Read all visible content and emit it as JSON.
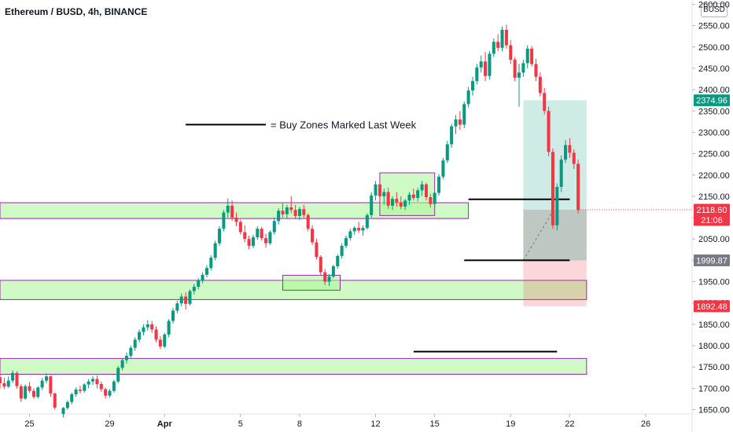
{
  "chart_data": {
    "type": "candlestick",
    "title": "Ethereum / BUSD, 4h, BINANCE",
    "currency": "BUSD",
    "y_axis": {
      "range": [
        1640,
        2610
      ],
      "ticks": [
        "1650.00",
        "1700.00",
        "1750.00",
        "1800.00",
        "1850.00",
        "1900.00",
        "1950.00",
        "2000.00",
        "2050.00",
        "2100.00",
        "2150.00",
        "2200.00",
        "2250.00",
        "2300.00",
        "2350.00",
        "2400.00",
        "2450.00",
        "2500.00",
        "2550.00",
        "2600.00"
      ],
      "tick_values": [
        1650,
        1700,
        1750,
        1800,
        1850,
        1900,
        1950,
        2000,
        2050,
        2100,
        2150,
        2200,
        2250,
        2300,
        2350,
        2400,
        2450,
        2500,
        2550,
        2600
      ]
    },
    "x_axis": {
      "range": [
        -3.5,
        78.5
      ],
      "ticks": [
        "25",
        "29",
        "Apr",
        "5",
        "8",
        "12",
        "15",
        "19",
        "22",
        "26"
      ],
      "tick_positions": [
        0,
        9.5,
        16,
        25,
        32,
        41,
        48,
        57,
        64,
        73
      ]
    },
    "price_tags": [
      {
        "label": "2374.96",
        "value": 2374.96,
        "color": "#089981"
      },
      {
        "label": "2118.60",
        "sub": "21:06",
        "value": 2118.6,
        "color": "#f23645"
      },
      {
        "label": "1999.87",
        "value": 1999.87,
        "color": "#787b86"
      },
      {
        "label": "1892.48",
        "value": 1892.48,
        "color": "#f23645"
      }
    ],
    "annotation": "= Buy Zones Marked Last Week",
    "zones": [
      {
        "name": "buy-zone-1",
        "x1": -3.5,
        "x2": 52,
        "y1": 2098,
        "y2": 2135
      },
      {
        "name": "buy-zone-2",
        "x1": -3.5,
        "x2": 66,
        "y1": 1908,
        "y2": 1953
      },
      {
        "name": "buy-zone-3",
        "x1": -3.5,
        "x2": 66,
        "y1": 1733,
        "y2": 1770
      },
      {
        "name": "consolidation-box-1",
        "x1": 30,
        "x2": 36.8,
        "y1": 1930,
        "y2": 1965
      },
      {
        "name": "consolidation-box-2",
        "x1": 41.5,
        "x2": 48,
        "y1": 2105,
        "y2": 2205
      }
    ],
    "trade_setup": {
      "x1": 58.5,
      "x2": 66,
      "target": 2374.96,
      "entry": 2118.6,
      "stop": 1892.48,
      "mid_level": 1999.87
    },
    "levels": [
      {
        "x1": 52,
        "x2": 64,
        "y": 2143
      },
      {
        "x1": 51.5,
        "x2": 64,
        "y": 2000
      },
      {
        "x1": 45.5,
        "x2": 62.5,
        "y": 1786
      }
    ],
    "legend_line": {
      "x1": 18.5,
      "x2": 28,
      "y": 2318
    },
    "candles": [
      [
        -3.5,
        1726,
        1736,
        1700,
        1712
      ],
      [
        -3,
        1712,
        1725,
        1698,
        1704
      ],
      [
        -2.5,
        1704,
        1728,
        1701,
        1718
      ],
      [
        -2,
        1718,
        1742,
        1712,
        1736
      ],
      [
        -1.5,
        1736,
        1740,
        1699,
        1705
      ],
      [
        -1,
        1705,
        1710,
        1668,
        1676
      ],
      [
        -0.5,
        1676,
        1709,
        1673,
        1705
      ],
      [
        0,
        1705,
        1715,
        1690,
        1694
      ],
      [
        0.5,
        1694,
        1700,
        1675,
        1680
      ],
      [
        1,
        1680,
        1705,
        1676,
        1702
      ],
      [
        1.5,
        1702,
        1725,
        1696,
        1718
      ],
      [
        2,
        1718,
        1735,
        1712,
        1728
      ],
      [
        2.5,
        1728,
        1730,
        1680,
        1688
      ],
      [
        3,
        1688,
        1690,
        1650,
        1655
      ],
      [
        4,
        1640,
        1656,
        1632,
        1654
      ],
      [
        4.5,
        1654,
        1672,
        1650,
        1668
      ],
      [
        5,
        1668,
        1690,
        1662,
        1686
      ],
      [
        5.5,
        1686,
        1702,
        1680,
        1697
      ],
      [
        6,
        1697,
        1706,
        1688,
        1694
      ],
      [
        6.5,
        1694,
        1712,
        1690,
        1709
      ],
      [
        7,
        1709,
        1722,
        1700,
        1716
      ],
      [
        7.5,
        1716,
        1728,
        1708,
        1722
      ],
      [
        8,
        1722,
        1730,
        1700,
        1710
      ],
      [
        8.5,
        1710,
        1716,
        1692,
        1698
      ],
      [
        9,
        1698,
        1702,
        1676,
        1683
      ],
      [
        9.5,
        1683,
        1698,
        1678,
        1694
      ],
      [
        10,
        1694,
        1720,
        1690,
        1716
      ],
      [
        10.5,
        1716,
        1752,
        1712,
        1748
      ],
      [
        11,
        1748,
        1770,
        1742,
        1766
      ],
      [
        11.5,
        1766,
        1784,
        1758,
        1776
      ],
      [
        12,
        1776,
        1800,
        1770,
        1795
      ],
      [
        12.5,
        1795,
        1820,
        1788,
        1814
      ],
      [
        13,
        1814,
        1838,
        1808,
        1832
      ],
      [
        13.5,
        1832,
        1850,
        1824,
        1843
      ],
      [
        14,
        1843,
        1860,
        1835,
        1850
      ],
      [
        14.5,
        1850,
        1858,
        1830,
        1838
      ],
      [
        15,
        1838,
        1845,
        1808,
        1814
      ],
      [
        15.5,
        1814,
        1822,
        1792,
        1798
      ],
      [
        16,
        1798,
        1830,
        1794,
        1826
      ],
      [
        16.5,
        1826,
        1862,
        1820,
        1858
      ],
      [
        17,
        1858,
        1888,
        1852,
        1882
      ],
      [
        17.5,
        1882,
        1905,
        1876,
        1899
      ],
      [
        18,
        1899,
        1922,
        1892,
        1915
      ],
      [
        18.5,
        1915,
        1925,
        1885,
        1898
      ],
      [
        19,
        1898,
        1932,
        1894,
        1928
      ],
      [
        19.5,
        1928,
        1945,
        1920,
        1938
      ],
      [
        20,
        1938,
        1958,
        1932,
        1952
      ],
      [
        20.5,
        1952,
        1972,
        1946,
        1966
      ],
      [
        21,
        1966,
        1988,
        1960,
        1982
      ],
      [
        21.5,
        1982,
        2012,
        1976,
        2006
      ],
      [
        22,
        2006,
        2046,
        2000,
        2040
      ],
      [
        22.5,
        2040,
        2080,
        2034,
        2074
      ],
      [
        23,
        2074,
        2118,
        2068,
        2112
      ],
      [
        23.5,
        2112,
        2145,
        2100,
        2128
      ],
      [
        24,
        2128,
        2140,
        2092,
        2100
      ],
      [
        24.5,
        2100,
        2112,
        2080,
        2090
      ],
      [
        25,
        2090,
        2096,
        2060,
        2066
      ],
      [
        25.5,
        2066,
        2082,
        2042,
        2050
      ],
      [
        26,
        2050,
        2058,
        2026,
        2034
      ],
      [
        26.5,
        2034,
        2060,
        2028,
        2054
      ],
      [
        27,
        2054,
        2080,
        2048,
        2074
      ],
      [
        27.5,
        2074,
        2078,
        2046,
        2052
      ],
      [
        28,
        2052,
        2062,
        2030,
        2040
      ],
      [
        28.5,
        2040,
        2070,
        2036,
        2066
      ],
      [
        29,
        2066,
        2100,
        2060,
        2092
      ],
      [
        29.5,
        2092,
        2122,
        2084,
        2116
      ],
      [
        30,
        2116,
        2135,
        2100,
        2108
      ],
      [
        30.5,
        2108,
        2130,
        2098,
        2124
      ],
      [
        31,
        2124,
        2150,
        2110,
        2118
      ],
      [
        31.5,
        2118,
        2130,
        2096,
        2104
      ],
      [
        32,
        2104,
        2125,
        2094,
        2120
      ],
      [
        32.5,
        2120,
        2130,
        2100,
        2106
      ],
      [
        33,
        2106,
        2110,
        2068,
        2074
      ],
      [
        33.5,
        2074,
        2082,
        2036,
        2042
      ],
      [
        34,
        2042,
        2050,
        2002,
        2008
      ],
      [
        34.5,
        2008,
        2012,
        1966,
        1972
      ],
      [
        35,
        1972,
        1980,
        1942,
        1950
      ],
      [
        35.5,
        1950,
        1968,
        1940,
        1962
      ],
      [
        36,
        1962,
        1990,
        1958,
        1986
      ],
      [
        36.5,
        1986,
        2014,
        1980,
        2010
      ],
      [
        37,
        2010,
        2040,
        2004,
        2034
      ],
      [
        37.5,
        2034,
        2058,
        2028,
        2052
      ],
      [
        38,
        2052,
        2074,
        2046,
        2068
      ],
      [
        38.5,
        2068,
        2080,
        2060,
        2076
      ],
      [
        39,
        2076,
        2090,
        2064,
        2070
      ],
      [
        39.5,
        2070,
        2082,
        2058,
        2076
      ],
      [
        40,
        2076,
        2110,
        2072,
        2106
      ],
      [
        40.5,
        2106,
        2160,
        2100,
        2152
      ],
      [
        41,
        2152,
        2186,
        2140,
        2178
      ],
      [
        41.5,
        2178,
        2180,
        2140,
        2150
      ],
      [
        42,
        2150,
        2168,
        2130,
        2160
      ],
      [
        42.5,
        2160,
        2170,
        2120,
        2128
      ],
      [
        43,
        2128,
        2150,
        2118,
        2144
      ],
      [
        43.5,
        2144,
        2160,
        2126,
        2136
      ],
      [
        44,
        2136,
        2150,
        2120,
        2126
      ],
      [
        44.5,
        2126,
        2144,
        2118,
        2140
      ],
      [
        45,
        2140,
        2160,
        2130,
        2154
      ],
      [
        45.5,
        2154,
        2168,
        2140,
        2146
      ],
      [
        46,
        2146,
        2170,
        2138,
        2164
      ],
      [
        46.5,
        2164,
        2186,
        2150,
        2178
      ],
      [
        47,
        2178,
        2182,
        2140,
        2148
      ],
      [
        47.5,
        2148,
        2156,
        2124,
        2132
      ],
      [
        48,
        2132,
        2162,
        2128,
        2158
      ],
      [
        48.5,
        2158,
        2202,
        2152,
        2196
      ],
      [
        49,
        2196,
        2240,
        2190,
        2234
      ],
      [
        49.5,
        2234,
        2280,
        2228,
        2272
      ],
      [
        50,
        2272,
        2320,
        2264,
        2314
      ],
      [
        50.5,
        2314,
        2340,
        2296,
        2330
      ],
      [
        51,
        2330,
        2350,
        2306,
        2318
      ],
      [
        51.5,
        2318,
        2372,
        2310,
        2366
      ],
      [
        52,
        2366,
        2406,
        2358,
        2398
      ],
      [
        52.5,
        2398,
        2430,
        2386,
        2420
      ],
      [
        53,
        2420,
        2460,
        2412,
        2452
      ],
      [
        53.5,
        2452,
        2480,
        2440,
        2466
      ],
      [
        54,
        2466,
        2488,
        2420,
        2432
      ],
      [
        54.5,
        2432,
        2490,
        2424,
        2484
      ],
      [
        55,
        2484,
        2520,
        2476,
        2512
      ],
      [
        55.5,
        2512,
        2530,
        2490,
        2498
      ],
      [
        56,
        2498,
        2548,
        2490,
        2540
      ],
      [
        56.5,
        2540,
        2552,
        2496,
        2504
      ],
      [
        57,
        2504,
        2516,
        2460,
        2470
      ],
      [
        57.5,
        2470,
        2476,
        2420,
        2428
      ],
      [
        58,
        2428,
        2460,
        2360,
        2440
      ],
      [
        58.5,
        2440,
        2470,
        2430,
        2462
      ],
      [
        59,
        2462,
        2504,
        2450,
        2496
      ],
      [
        59.5,
        2496,
        2502,
        2454,
        2460
      ],
      [
        60,
        2460,
        2472,
        2420,
        2430
      ],
      [
        60.5,
        2430,
        2440,
        2384,
        2392
      ],
      [
        61,
        2392,
        2404,
        2342,
        2350
      ],
      [
        61.5,
        2350,
        2360,
        2244,
        2254
      ],
      [
        62,
        2254,
        2262,
        2074,
        2082
      ],
      [
        62.5,
        2082,
        2180,
        2070,
        2172
      ],
      [
        63,
        2172,
        2246,
        2160,
        2236
      ],
      [
        63.5,
        2236,
        2282,
        2228,
        2270
      ],
      [
        64,
        2270,
        2286,
        2240,
        2252
      ],
      [
        64.5,
        2252,
        2260,
        2214,
        2226
      ],
      [
        65,
        2226,
        2236,
        2110,
        2118
      ]
    ]
  }
}
